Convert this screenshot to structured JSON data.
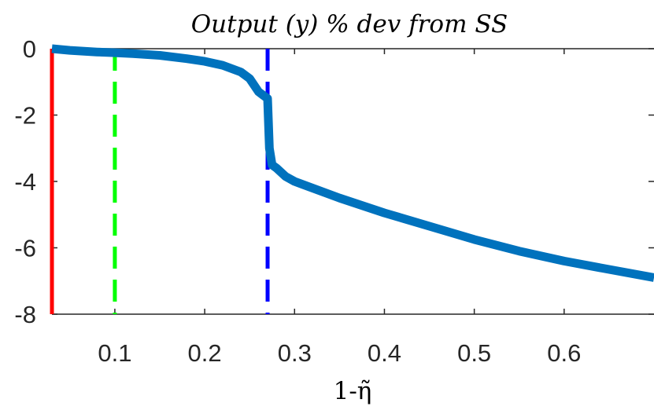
{
  "chart_data": {
    "type": "line",
    "title": "Output (y) % dev from SS",
    "xlabel": "1-η̃",
    "ylabel": "",
    "xlim": [
      0.03,
      0.7
    ],
    "ylim": [
      -8,
      0
    ],
    "xticks": [
      0.1,
      0.2,
      0.3,
      0.4,
      0.5,
      0.6
    ],
    "xtick_labels": [
      "0.1",
      "0.2",
      "0.3",
      "0.4",
      "0.5",
      "0.6"
    ],
    "yticks": [
      0,
      -2,
      -4,
      -6,
      -8
    ],
    "ytick_labels": [
      "0",
      "-2",
      "-4",
      "-6",
      "-8"
    ],
    "grid": false,
    "series": [
      {
        "color": "#0072BD",
        "x": [
          0.03,
          0.05,
          0.08,
          0.1,
          0.12,
          0.15,
          0.18,
          0.2,
          0.22,
          0.24,
          0.25,
          0.26,
          0.265,
          0.27,
          0.272,
          0.275,
          0.28,
          0.29,
          0.3,
          0.35,
          0.4,
          0.45,
          0.5,
          0.55,
          0.6,
          0.65,
          0.7
        ],
        "y": [
          0.0,
          -0.05,
          -0.1,
          -0.12,
          -0.15,
          -0.2,
          -0.3,
          -0.38,
          -0.5,
          -0.7,
          -0.9,
          -1.3,
          -1.4,
          -1.5,
          -3.0,
          -3.5,
          -3.6,
          -3.85,
          -4.0,
          -4.5,
          -4.95,
          -5.35,
          -5.75,
          -6.1,
          -6.4,
          -6.65,
          -6.9
        ]
      }
    ],
    "vertical_lines": [
      {
        "x": 0.03,
        "color": "#ff0000",
        "style": "solid"
      },
      {
        "x": 0.1,
        "color": "#00ff00",
        "style": "dashed"
      },
      {
        "x": 0.27,
        "color": "#0000ff",
        "style": "dashed"
      }
    ]
  }
}
